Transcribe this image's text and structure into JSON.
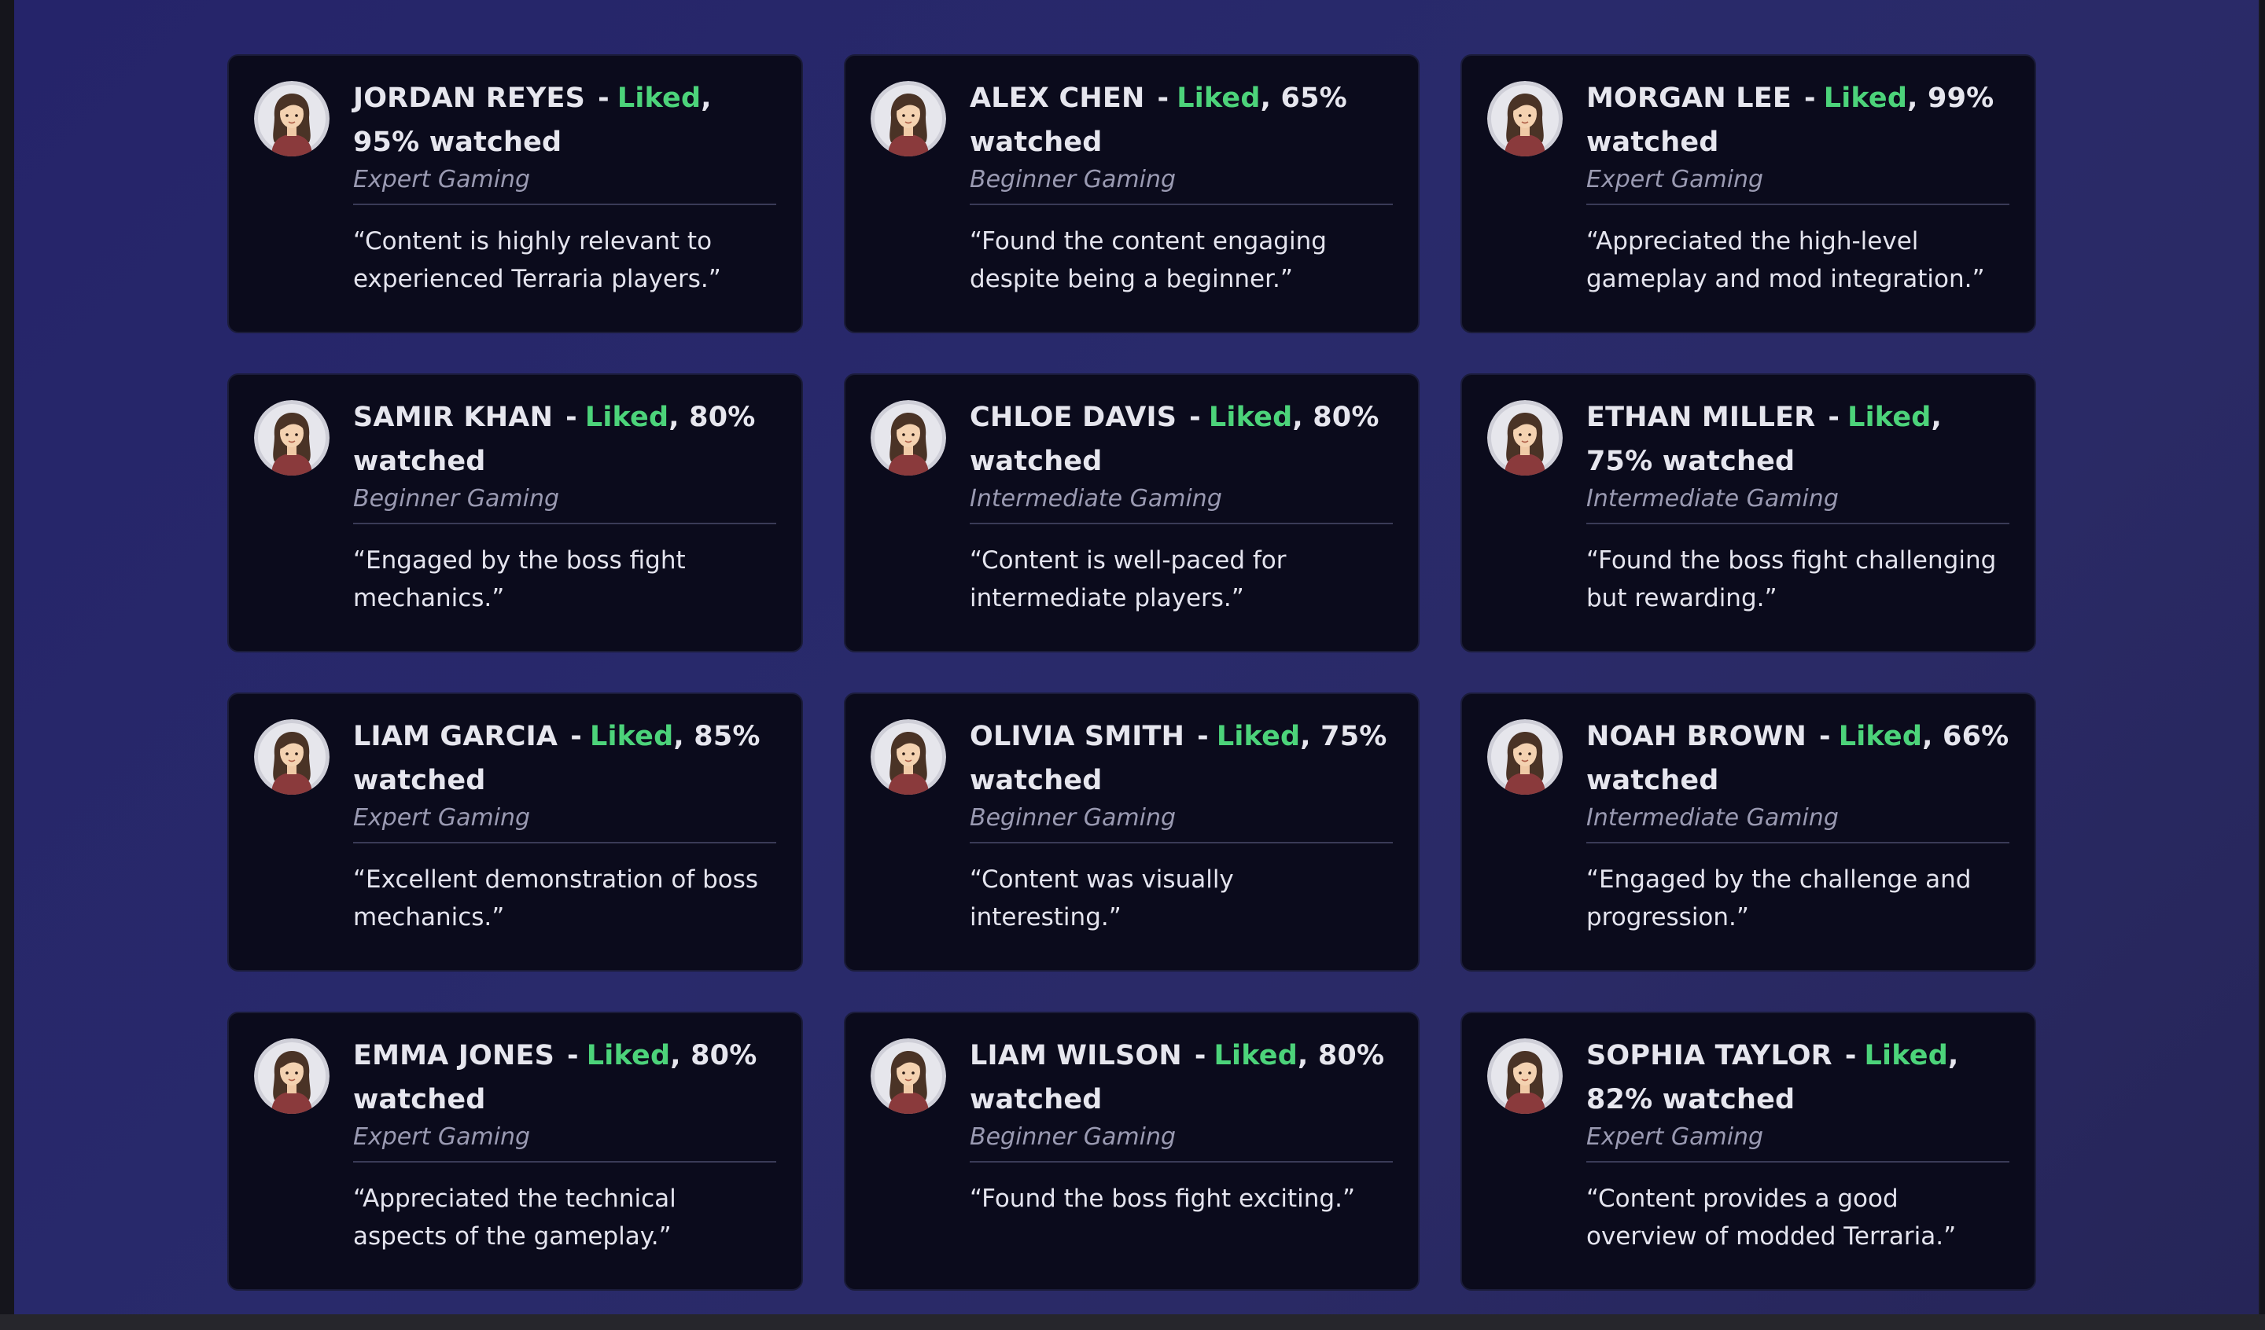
{
  "labels": {
    "separator": "-",
    "watched_suffix": "watched"
  },
  "colors": {
    "background": "#27276a",
    "card": "#0b0b1c",
    "liked": "#4cd37a",
    "text": "#e6e6ee",
    "category": "#9a9ab2"
  },
  "avatar_icon": "woman-avatar-icon",
  "reviews": [
    {
      "name": "JORDAN REYES",
      "status": "Liked",
      "percent": "95%",
      "category": "Expert Gaming",
      "quote": "“Content is highly relevant to experienced Terraria players.”"
    },
    {
      "name": "ALEX CHEN",
      "status": "Liked",
      "percent": "65%",
      "category": "Beginner Gaming",
      "quote": "“Found the content engaging despite being a beginner.”"
    },
    {
      "name": "MORGAN LEE",
      "status": "Liked",
      "percent": "99%",
      "category": "Expert Gaming",
      "quote": "“Appreciated the high-level gameplay and mod integration.”"
    },
    {
      "name": "SAMIR KHAN",
      "status": "Liked",
      "percent": "80%",
      "category": "Beginner Gaming",
      "quote": "“Engaged by the boss fight mechanics.”"
    },
    {
      "name": "CHLOE DAVIS",
      "status": "Liked",
      "percent": "80%",
      "category": "Intermediate Gaming",
      "quote": "“Content is well-paced for intermediate players.”"
    },
    {
      "name": "ETHAN MILLER",
      "status": "Liked",
      "percent": "75%",
      "category": "Intermediate Gaming",
      "quote": "“Found the boss fight challenging but rewarding.”"
    },
    {
      "name": "LIAM GARCIA",
      "status": "Liked",
      "percent": "85%",
      "category": "Expert Gaming",
      "quote": "“Excellent demonstration of boss mechanics.”"
    },
    {
      "name": "OLIVIA SMITH",
      "status": "Liked",
      "percent": "75%",
      "category": "Beginner Gaming",
      "quote": "“Content was visually interesting.”"
    },
    {
      "name": "NOAH BROWN",
      "status": "Liked",
      "percent": "66%",
      "category": "Intermediate Gaming",
      "quote": "“Engaged by the challenge and progression.”"
    },
    {
      "name": "EMMA JONES",
      "status": "Liked",
      "percent": "80%",
      "category": "Expert Gaming",
      "quote": "“Appreciated the technical aspects of the gameplay.”"
    },
    {
      "name": "LIAM WILSON",
      "status": "Liked",
      "percent": "80%",
      "category": "Beginner Gaming",
      "quote": "“Found the boss fight exciting.”"
    },
    {
      "name": "SOPHIA TAYLOR",
      "status": "Liked",
      "percent": "82%",
      "category": "Expert Gaming",
      "quote": "“Content provides a good overview of modded Terraria.”"
    }
  ]
}
